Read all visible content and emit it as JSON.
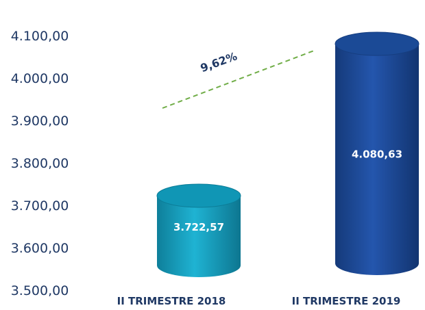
{
  "chart_data": {
    "type": "bar",
    "categories": [
      "II TRIMESTRE 2018",
      "II TRIMESTRE 2019"
    ],
    "values": [
      3722.57,
      4080.63
    ],
    "data_labels": [
      "3.722,57",
      "4.080,63"
    ],
    "ylim": [
      3500,
      4100
    ],
    "yticks": [
      3500,
      3600,
      3700,
      3800,
      3900,
      4000,
      4100
    ],
    "ytick_labels": [
      "3.500,00",
      "3.600,00",
      "3.700,00",
      "3.800,00",
      "3.900,00",
      "4.000,00",
      "4.100,00"
    ],
    "annotation": "9,62%",
    "colors": [
      "#17a2c4",
      "#1f4e9c"
    ],
    "trend_color": "#70ad47",
    "text_color": "#1f3864",
    "bar_shape": "cylinder",
    "grid": false,
    "legend": "none"
  }
}
